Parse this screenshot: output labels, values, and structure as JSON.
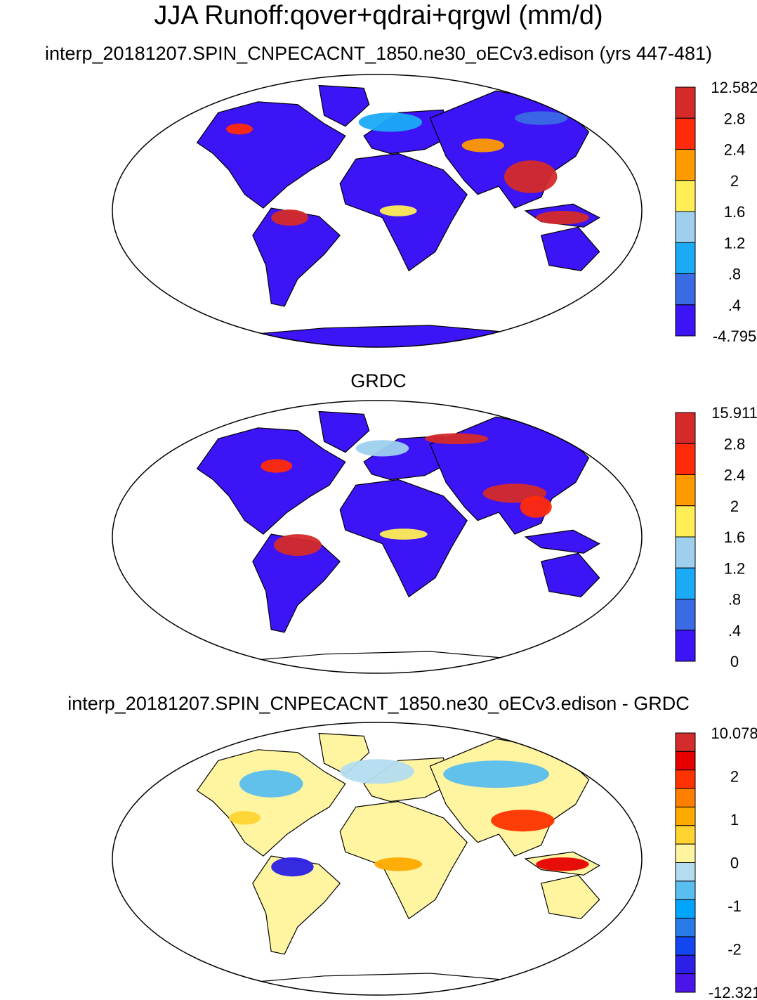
{
  "figure": {
    "title": "JJA Runoff:qover+qdrai+qrgwl (mm/d)"
  },
  "panels": [
    {
      "title": "interp_20181207.SPIN_CNPECACNT_1850.ne30_oECv3.edison (yrs 447-481)",
      "colorbar": {
        "labels": [
          "12.582",
          "2.8",
          "2.4",
          "2",
          "1.6",
          "1.2",
          ".8",
          ".4",
          "-4.795"
        ],
        "colors": [
          "#d42a2a",
          "#ff2a0a",
          "#ff9a00",
          "#ffee55",
          "#9ed0ee",
          "#1aaaf6",
          "#3a6ae4",
          "#3c14f6"
        ]
      },
      "dominant_land_color": "#3c14f6",
      "antarctica_filled": true
    },
    {
      "title": "GRDC",
      "colorbar": {
        "labels": [
          "15.911",
          "2.8",
          "2.4",
          "2",
          "1.6",
          "1.2",
          ".8",
          ".4",
          "0"
        ],
        "colors": [
          "#d42a2a",
          "#ff2a0a",
          "#ff9a00",
          "#ffee55",
          "#9ed0ee",
          "#1aaaf6",
          "#3a6ae4",
          "#3c14f6"
        ]
      },
      "dominant_land_color": "#3c14f6",
      "antarctica_filled": false
    },
    {
      "title": "interp_20181207.SPIN_CNPECACNT_1850.ne30_oECv3.edison - GRDC",
      "colorbar": {
        "labels": [
          "10.078",
          "2",
          "1",
          "0",
          "-1",
          "-2",
          "-12.321"
        ],
        "colors": [
          "#d22c2c",
          "#e60000",
          "#ff3300",
          "#ff7f00",
          "#ffaa00",
          "#ffd431",
          "#fff5a0",
          "#b4dcf0",
          "#5abeef",
          "#00a5ff",
          "#287ae6",
          "#1446f0",
          "#2c20e6",
          "#4b14e8"
        ]
      },
      "dominant_land_color": "#fff5a0",
      "antarctica_filled": false
    }
  ]
}
